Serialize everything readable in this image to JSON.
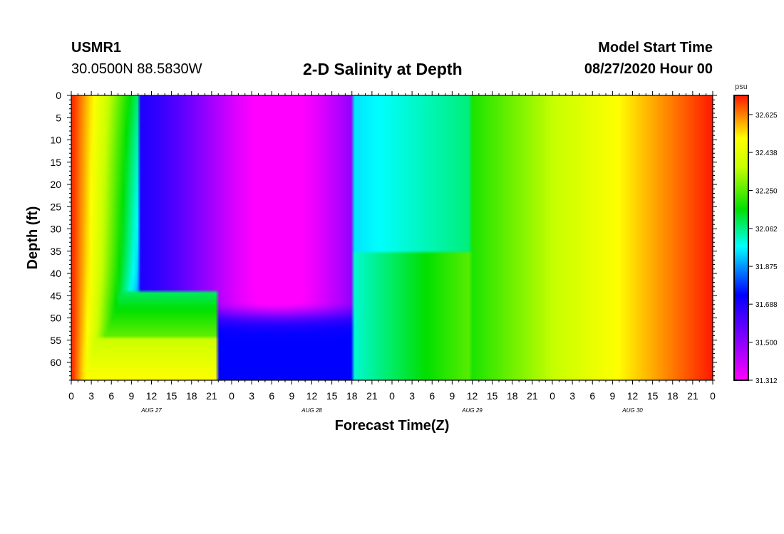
{
  "header": {
    "station_id": "USMR1",
    "station_coords": "30.0500N 88.5830W",
    "title": "2-D Salinity at Depth",
    "start_label": "Model Start Time",
    "start_value": "08/27/2020 Hour 00"
  },
  "chart_data": {
    "type": "heatmap",
    "title": "2-D Salinity at Depth",
    "xlabel": "Forecast Time(Z)",
    "ylabel": "Depth (ft)",
    "x_ticks": [
      "0",
      "3",
      "6",
      "9",
      "12",
      "15",
      "18",
      "21",
      "0",
      "3",
      "6",
      "9",
      "12",
      "15",
      "18",
      "21",
      "0",
      "3",
      "6",
      "9",
      "12",
      "15",
      "18",
      "21",
      "0",
      "3",
      "6",
      "9",
      "12",
      "15",
      "18",
      "21",
      "0"
    ],
    "date_labels": [
      "AUG 27",
      "AUG 28",
      "AUG 29",
      "AUG 30"
    ],
    "x_range_hours": [
      0,
      96
    ],
    "y_ticks": [
      0,
      5,
      10,
      15,
      20,
      25,
      30,
      35,
      40,
      45,
      50,
      55,
      60
    ],
    "ylim": [
      0,
      64
    ],
    "y_inverted": true,
    "colorbar": {
      "unit": "psu",
      "ticks": [
        "32.625",
        "32.438",
        "32.250",
        "32.062",
        "31.875",
        "31.688",
        "31.500",
        "31.312"
      ],
      "range": [
        31.312,
        32.72
      ]
    },
    "colors": {
      "high": "#ff1800",
      "low": "#ff00ff"
    }
  }
}
